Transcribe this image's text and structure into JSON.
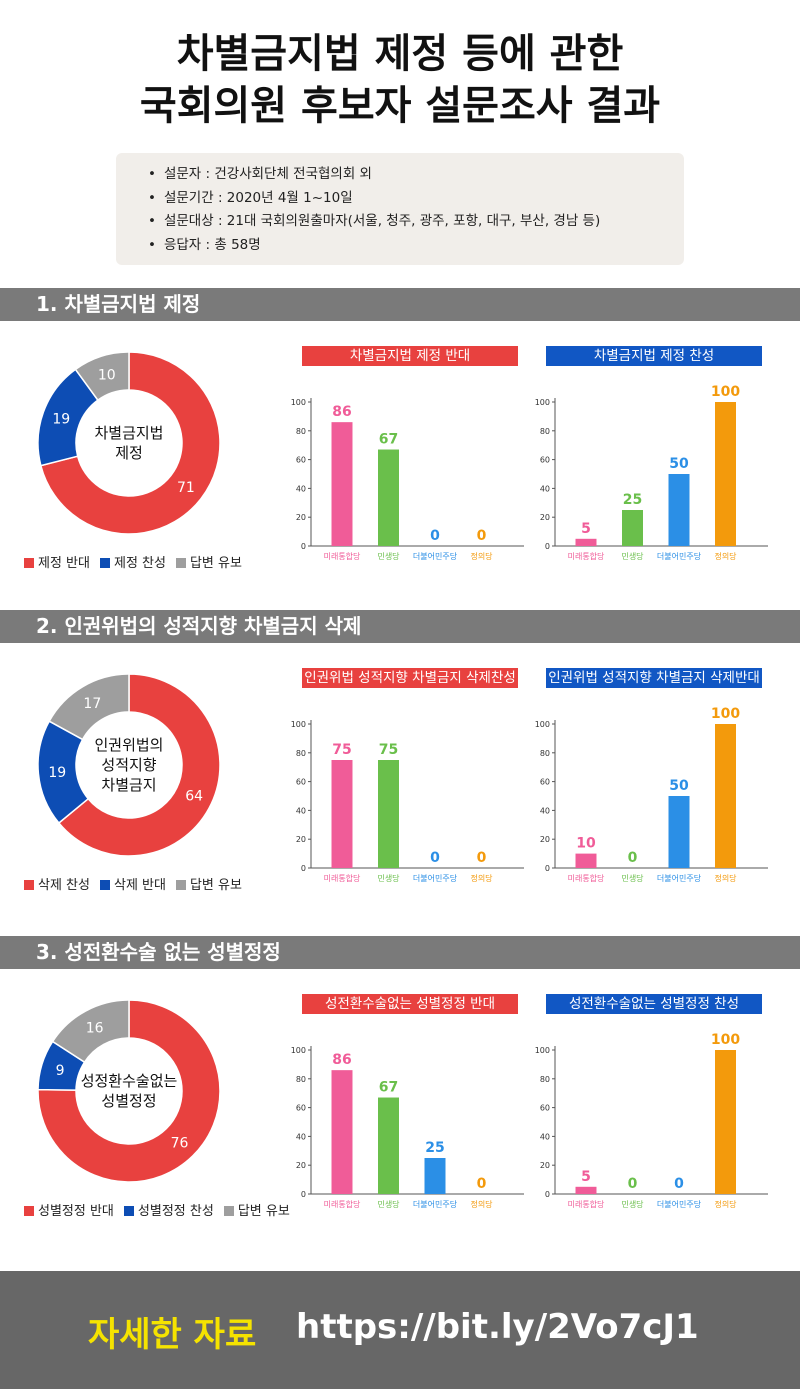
{
  "header": {
    "title_line1": "차별금지법 제정 등에 관한",
    "title_line2": "국회의원 후보자 설문조사 결과",
    "info": [
      "설문자 : 건강사회단체 전국협의회 외",
      "설문기간 : 2020년 4월 1~10일",
      "설문대상 : 21대 국회의원출마자(서울, 청주, 광주, 포항, 대구, 부산, 경남 등)",
      "응답자 : 총 58명"
    ]
  },
  "colors": {
    "red": "#e8413f",
    "blue": "#0d4db4",
    "gray": "#9e9e9e",
    "pink": "#f05c98",
    "green": "#6abf4b",
    "skyblue": "#2b8fe6",
    "orange": "#f39a0c",
    "title_red": "#e8413f",
    "title_blue": "#1157c4"
  },
  "sections": [
    {
      "heading": "1. 차별금지법 제정",
      "donut": {
        "center": [
          "차별금지법",
          "제정"
        ],
        "slices": [
          {
            "label": "제정 반대",
            "value": 71,
            "color": "red"
          },
          {
            "label": "제정 찬성",
            "value": 19,
            "color": "blue"
          },
          {
            "label": "답변 유보",
            "value": 10,
            "color": "gray"
          }
        ]
      },
      "charts": [
        {
          "title": "차별금지법 제정 반대",
          "title_color": "title_red",
          "values": [
            86,
            67,
            0,
            0
          ]
        },
        {
          "title": "차별금지법 제정 찬성",
          "title_color": "title_blue",
          "values": [
            5,
            25,
            50,
            100
          ]
        }
      ]
    },
    {
      "heading": "2. 인권위법의 성적지향 차별금지 삭제",
      "donut": {
        "center": [
          "인권위법의",
          "성적지향",
          "차별금지"
        ],
        "slices": [
          {
            "label": "삭제 찬성",
            "value": 64,
            "color": "red"
          },
          {
            "label": "삭제 반대",
            "value": 19,
            "color": "blue"
          },
          {
            "label": "답변 유보",
            "value": 17,
            "color": "gray"
          }
        ]
      },
      "charts": [
        {
          "title": "인권위법 성적지향 차별금지 삭제찬성",
          "title_color": "title_red",
          "values": [
            75,
            75,
            0,
            0
          ]
        },
        {
          "title": "인권위법 성적지향 차별금지 삭제반대",
          "title_color": "title_blue",
          "values": [
            10,
            0,
            50,
            100
          ]
        }
      ]
    },
    {
      "heading": "3. 성전환수술 없는 성별정정",
      "donut": {
        "center": [
          "성정환수술없는",
          "성별정정"
        ],
        "slices": [
          {
            "label": "성별정정 반대",
            "value": 76,
            "color": "red"
          },
          {
            "label": "성별정정 찬성",
            "value": 9,
            "color": "blue"
          },
          {
            "label": "답변 유보",
            "value": 16,
            "color": "gray"
          }
        ]
      },
      "charts": [
        {
          "title": "성전환수술없는 성별정정 반대",
          "title_color": "title_red",
          "values": [
            86,
            67,
            25,
            0
          ]
        },
        {
          "title": "성전환수술없는 성별정정 찬성",
          "title_color": "title_blue",
          "values": [
            5,
            0,
            0,
            100
          ]
        }
      ]
    }
  ],
  "parties": [
    {
      "name": "미래통합당",
      "color": "pink"
    },
    {
      "name": "민생당",
      "color": "green"
    },
    {
      "name": "더불어민주당",
      "color": "skyblue"
    },
    {
      "name": "정의당",
      "color": "orange"
    }
  ],
  "axis": {
    "ticks": [
      0,
      20,
      40,
      60,
      80,
      100
    ],
    "ylim": [
      0,
      100
    ]
  },
  "footer": {
    "label": "자세한 자료",
    "url": "https://bit.ly/2Vo7cJ1"
  },
  "chart_data": [
    {
      "type": "pie",
      "title": "1. 차별금지법 제정",
      "categories": [
        "제정 반대",
        "제정 찬성",
        "답변 유보"
      ],
      "values": [
        71,
        19,
        10
      ]
    },
    {
      "type": "bar",
      "title": "차별금지법 제정 반대",
      "categories": [
        "미래통합당",
        "민생당",
        "더불어민주당",
        "정의당"
      ],
      "values": [
        86,
        67,
        0,
        0
      ],
      "ylim": [
        0,
        100
      ]
    },
    {
      "type": "bar",
      "title": "차별금지법 제정 찬성",
      "categories": [
        "미래통합당",
        "민생당",
        "더불어민주당",
        "정의당"
      ],
      "values": [
        5,
        25,
        50,
        100
      ],
      "ylim": [
        0,
        100
      ]
    },
    {
      "type": "pie",
      "title": "2. 인권위법의 성적지향 차별금지 삭제",
      "categories": [
        "삭제 찬성",
        "삭제 반대",
        "답변 유보"
      ],
      "values": [
        64,
        19,
        17
      ]
    },
    {
      "type": "bar",
      "title": "인권위법 성적지향 차별금지 삭제찬성",
      "categories": [
        "미래통합당",
        "민생당",
        "더불어민주당",
        "정의당"
      ],
      "values": [
        75,
        75,
        0,
        0
      ],
      "ylim": [
        0,
        100
      ]
    },
    {
      "type": "bar",
      "title": "인권위법 성적지향 차별금지 삭제반대",
      "categories": [
        "미래통합당",
        "민생당",
        "더불어민주당",
        "정의당"
      ],
      "values": [
        10,
        0,
        50,
        100
      ],
      "ylim": [
        0,
        100
      ]
    },
    {
      "type": "pie",
      "title": "3. 성전환수술 없는 성별정정",
      "categories": [
        "성별정정 반대",
        "성별정정 찬성",
        "답변 유보"
      ],
      "values": [
        76,
        9,
        16
      ]
    },
    {
      "type": "bar",
      "title": "성전환수술없는 성별정정 반대",
      "categories": [
        "미래통합당",
        "민생당",
        "더불어민주당",
        "정의당"
      ],
      "values": [
        86,
        67,
        25,
        0
      ],
      "ylim": [
        0,
        100
      ]
    },
    {
      "type": "bar",
      "title": "성전환수술없는 성별정정 찬성",
      "categories": [
        "미래통합당",
        "민생당",
        "더불어민주당",
        "정의당"
      ],
      "values": [
        5,
        0,
        0,
        100
      ],
      "ylim": [
        0,
        100
      ]
    }
  ]
}
